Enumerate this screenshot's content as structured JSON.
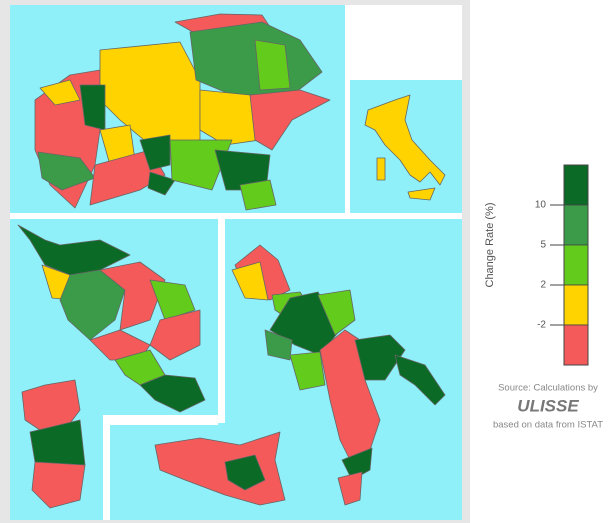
{
  "legend": {
    "title": "Change Rate (%)",
    "classes": [
      {
        "color": "#0b6a25"
      },
      {
        "color": "#3b9b48"
      },
      {
        "color": "#62cb1c"
      },
      {
        "color": "#ffd300"
      },
      {
        "color": "#f45a5a"
      }
    ],
    "ticks": [
      10,
      5,
      2,
      -2
    ]
  },
  "source": {
    "line1": "Source: Calculations by",
    "logo": "ULISSE",
    "line2": "based on data from ISTAT"
  }
}
